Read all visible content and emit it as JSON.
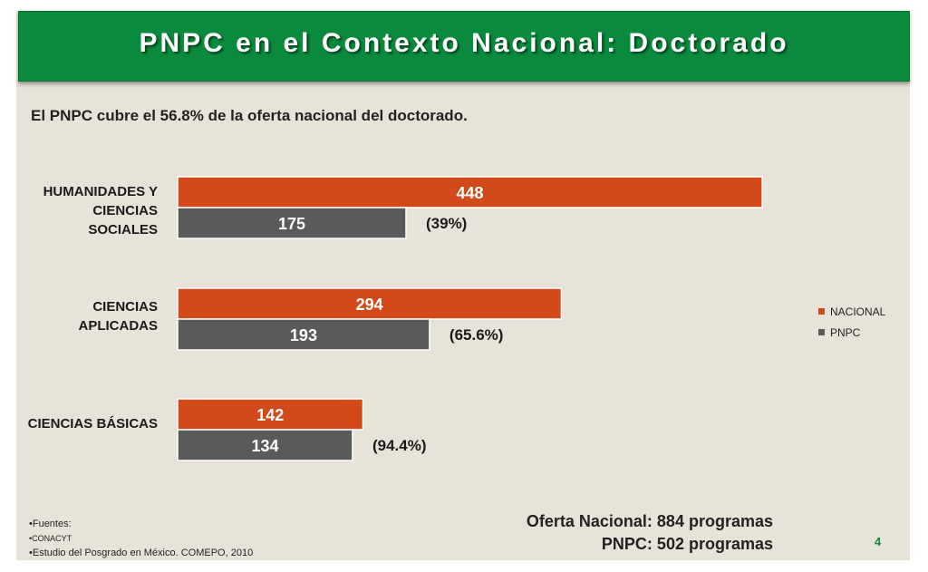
{
  "slide": {
    "title": "PNPC en el Contexto Nacional: Doctorado",
    "subtitle": "El PNPC cubre el 56.8% de la oferta nacional del doctorado.",
    "page_number": "4"
  },
  "totals": {
    "line1": "Oferta Nacional: 884 programas",
    "line2": "PNPC: 502 programas"
  },
  "sources": {
    "heading": "•Fuentes:",
    "items": [
      "•CONACYT",
      "•Estudio del Posgrado en México. COMEPO, 2010"
    ]
  },
  "colors": {
    "nacional": "#d24a1a",
    "pnpc": "#5a5a5a",
    "title_bg": "#0a8a3c"
  },
  "chart_data": {
    "type": "bar",
    "orientation": "horizontal",
    "categories": [
      "HUMANIDADES Y CIENCIAS SOCIALES",
      "CIENCIAS APLICADAS",
      "CIENCIAS BÁSICAS"
    ],
    "series": [
      {
        "name": "NACIONAL",
        "values": [
          448,
          294,
          142
        ]
      },
      {
        "name": "PNPC",
        "values": [
          175,
          193,
          134
        ]
      }
    ],
    "annotations": [
      "(39%)",
      "(65.6%)",
      "(94.4%)"
    ],
    "legend": "right",
    "grid": false
  }
}
